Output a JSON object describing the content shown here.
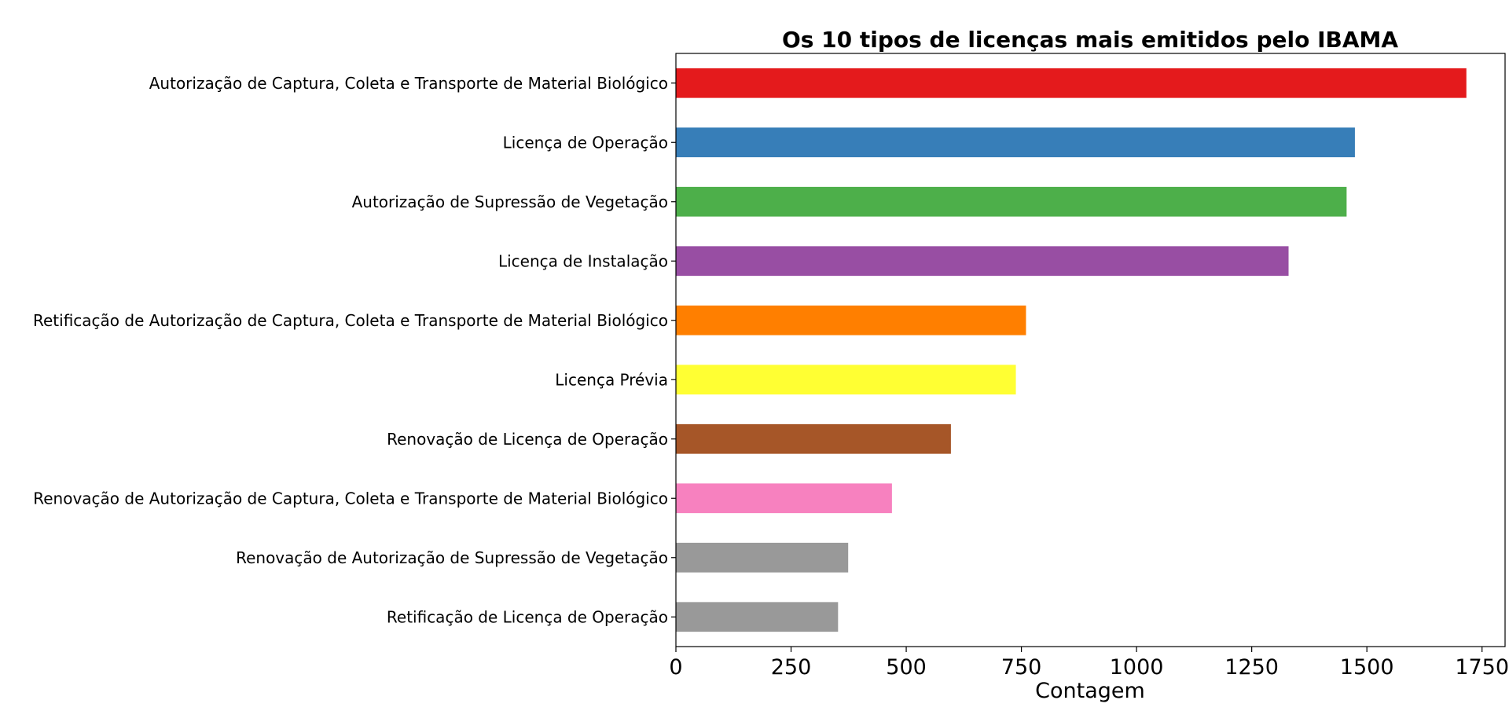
{
  "chart_data": {
    "type": "bar",
    "orientation": "horizontal",
    "title": "Os 10 tipos de licenças mais emitidos pelo IBAMA",
    "xlabel": "Contagem",
    "ylabel": "",
    "xlim": [
      0,
      1800
    ],
    "xticks": [
      "0",
      "250",
      "500",
      "750",
      "1000",
      "1250",
      "1500",
      "1750"
    ],
    "grid": false,
    "categories": [
      "Autorização de Captura, Coleta e Transporte de Material Biológico",
      "Licença de Operação",
      "Autorização de Supressão de Vegetação",
      "Licença de Instalação",
      "Retificação de Autorização de Captura, Coleta e Transporte de Material Biológico",
      "Licença Prévia",
      "Renovação de Licença de Operação",
      "Renovação de Autorização de Captura, Coleta e Transporte de Material Biológico",
      "Renovação de Autorização de Supressão de Vegetação",
      "Retificação de Licença de Operação"
    ],
    "values": [
      1716,
      1474,
      1456,
      1330,
      760,
      738,
      597,
      469,
      374,
      352
    ],
    "colors": [
      "#e41a1c",
      "#377eb8",
      "#4daf4a",
      "#984ea3",
      "#ff7f00",
      "#ffff33",
      "#a65628",
      "#f781bf",
      "#999999",
      "#999999"
    ]
  }
}
